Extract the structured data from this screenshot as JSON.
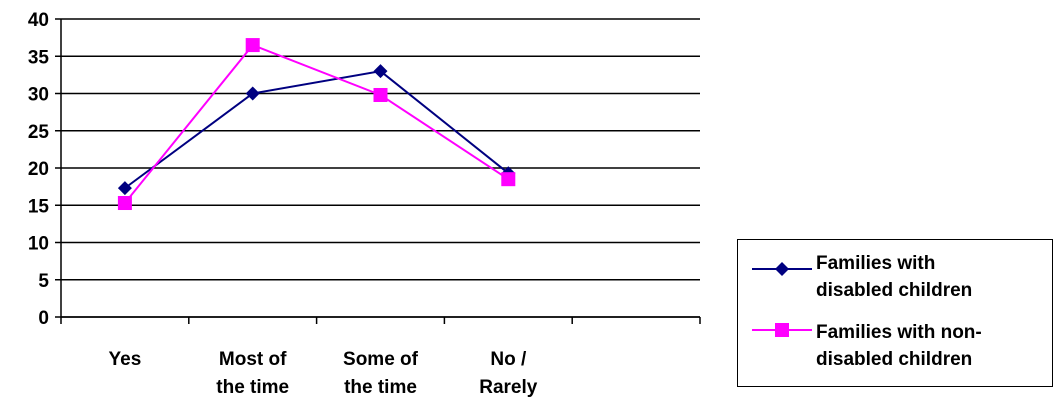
{
  "chart_data": {
    "type": "line",
    "categories": [
      "Yes",
      "Most of\nthe time",
      "Some of\nthe time",
      "No /\nRarely"
    ],
    "ylim": [
      0,
      40
    ],
    "yticks": [
      0,
      5,
      10,
      15,
      20,
      25,
      30,
      35,
      40
    ],
    "grid": true,
    "legend_position": "bottom-right",
    "series": [
      {
        "name": "Families with disabled children",
        "values": [
          17.3,
          30.0,
          33.0,
          19.3
        ],
        "color": "#000080",
        "marker": "diamond"
      },
      {
        "name": "Families with non-disabled children",
        "values": [
          15.3,
          36.5,
          29.8,
          18.5
        ],
        "color": "#ff00ff",
        "marker": "square"
      }
    ]
  },
  "legend": {
    "items": [
      {
        "label": "Families with\ndisabled children",
        "color": "#000080",
        "marker": "diamond"
      },
      {
        "label": "Families with non-\ndisabled children",
        "color": "#ff00ff",
        "marker": "square"
      }
    ]
  }
}
